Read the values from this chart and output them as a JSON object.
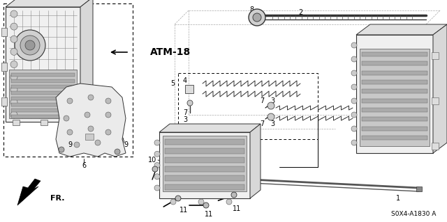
{
  "bg_color": "#ffffff",
  "fig_width": 6.4,
  "fig_height": 3.19,
  "dpi": 100,
  "part_number": "S0X4-A1830 A",
  "ref_label": "ATM-18",
  "direction_label": "FR.",
  "label_fs": 7.0,
  "title_fs": 9.0
}
